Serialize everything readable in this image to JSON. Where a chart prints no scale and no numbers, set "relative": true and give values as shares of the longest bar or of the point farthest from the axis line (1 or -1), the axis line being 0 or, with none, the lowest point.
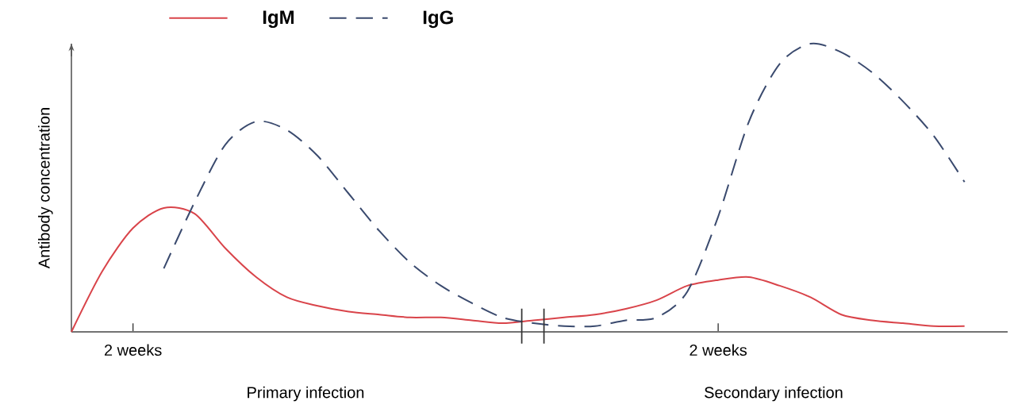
{
  "chart_data": {
    "type": "line",
    "relative": true,
    "ylabel": "Antibody concentration",
    "categories": [
      null,
      null,
      "2 weeks",
      null,
      null,
      null,
      null,
      null,
      null,
      null,
      null,
      null,
      null,
      null,
      null,
      null,
      null,
      null,
      null,
      null,
      null,
      "2 weeks",
      null,
      null,
      null,
      null,
      null,
      null,
      null,
      null,
      null
    ],
    "legend": "top left",
    "annotations": [
      "Primary infection",
      "Secondary infection"
    ],
    "series": [
      {
        "name": "IgM",
        "color": "#d9444a",
        "line_style": "solid",
        "values": [
          0,
          0.21,
          0.36,
          0.43,
          0.41,
          0.29,
          0.19,
          0.12,
          0.09,
          0.07,
          0.06,
          0.05,
          0.05,
          0.04,
          0.03,
          0.04,
          0.05,
          0.06,
          0.08,
          0.11,
          0.16,
          0.18,
          0.19,
          0.16,
          0.12,
          0.06,
          0.04,
          0.03,
          0.02,
          0.02,
          null
        ]
      },
      {
        "name": "IgG",
        "color": "#3a4a6e",
        "line_style": "dashed",
        "values": [
          null,
          null,
          null,
          0.22,
          0.45,
          0.65,
          0.73,
          0.7,
          0.61,
          0.48,
          0.35,
          0.24,
          0.16,
          0.1,
          0.05,
          0.03,
          0.02,
          0.02,
          0.04,
          0.05,
          0.14,
          0.4,
          0.73,
          0.93,
          1.0,
          0.97,
          0.9,
          0.8,
          0.68,
          0.52,
          null
        ]
      }
    ]
  }
}
